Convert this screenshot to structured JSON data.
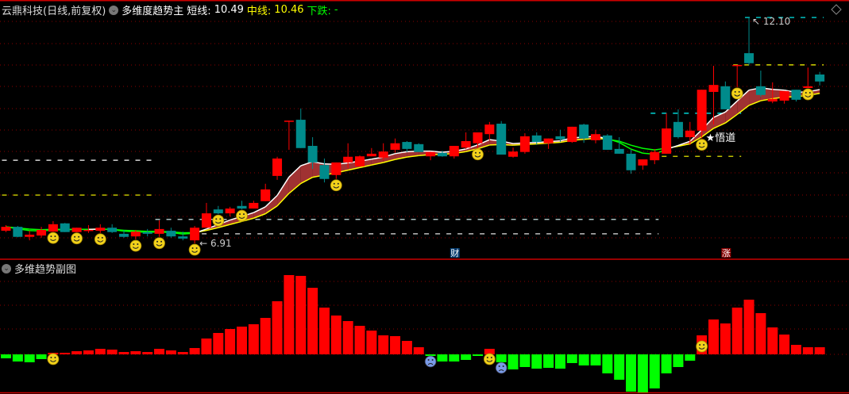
{
  "header": {
    "stock_title": "云鼎科技(日线,前复权)",
    "indicator_name": "多维度趋势主",
    "short_label": "短线:",
    "short_value": "10.49",
    "mid_label": "中线:",
    "mid_value": "10.46",
    "down_label": "下跌:",
    "down_value": "-"
  },
  "sub_panel": {
    "title": "多维趋势副图"
  },
  "colors": {
    "up": "#ff0000",
    "down": "#008b8b",
    "short_line": "#ffffff",
    "mid_line": "#ffff00",
    "fill": "#a03232",
    "grid": "#8b0000",
    "hist_up": "#ff0000",
    "hist_down": "#00ff00"
  },
  "annotations": {
    "low_label": "6.91",
    "high_label": "12.10",
    "signal_text": "★悟道",
    "cai_marker": "财",
    "zhang_marker": "涨"
  },
  "icons": [
    "dropdown-circle-icon",
    "diamond-icon",
    "smiley-icon",
    "frown-icon"
  ],
  "chart_data": [
    {
      "type": "candlestick",
      "title": "多维度趋势主",
      "high_marker": 12.1,
      "low_marker": 6.91,
      "ohlc": [
        [
          7.2,
          7.33,
          7.17,
          7.29
        ],
        [
          7.29,
          7.31,
          7.05,
          7.06
        ],
        [
          7.06,
          7.2,
          6.98,
          7.11
        ],
        [
          7.09,
          7.29,
          7.04,
          7.22
        ],
        [
          7.18,
          7.42,
          7.18,
          7.35
        ],
        [
          7.37,
          7.38,
          7.17,
          7.17
        ],
        [
          7.17,
          7.27,
          7.17,
          7.27
        ],
        [
          7.21,
          7.33,
          7.15,
          7.22
        ],
        [
          7.2,
          7.35,
          7.15,
          7.27
        ],
        [
          7.27,
          7.35,
          7.15,
          7.17
        ],
        [
          7.13,
          7.22,
          7.04,
          7.06
        ],
        [
          7.07,
          7.22,
          7.0,
          7.18
        ],
        [
          7.17,
          7.24,
          7.07,
          7.13
        ],
        [
          7.13,
          7.44,
          7.06,
          7.24
        ],
        [
          7.2,
          7.27,
          7.04,
          7.07
        ],
        [
          7.07,
          7.18,
          6.98,
          7.02
        ],
        [
          6.98,
          7.31,
          6.91,
          7.27
        ],
        [
          7.27,
          7.84,
          7.27,
          7.6
        ],
        [
          7.69,
          7.77,
          7.58,
          7.6
        ],
        [
          7.6,
          7.75,
          7.53,
          7.71
        ],
        [
          7.77,
          7.89,
          7.69,
          7.71
        ],
        [
          7.71,
          7.89,
          7.71,
          7.84
        ],
        [
          7.88,
          8.28,
          7.88,
          8.15
        ],
        [
          8.46,
          8.9,
          8.37,
          8.86
        ],
        [
          9.71,
          9.73,
          9.06,
          9.73
        ],
        [
          9.75,
          10.01,
          9.1,
          9.1
        ],
        [
          9.15,
          9.35,
          8.62,
          8.77
        ],
        [
          8.71,
          8.86,
          8.31,
          8.39
        ],
        [
          8.48,
          8.77,
          8.39,
          8.77
        ],
        [
          8.77,
          9.21,
          8.64,
          8.9
        ],
        [
          8.68,
          8.93,
          8.68,
          8.91
        ],
        [
          8.91,
          9.1,
          8.91,
          8.97
        ],
        [
          8.88,
          9.21,
          8.82,
          9.02
        ],
        [
          9.06,
          9.32,
          8.99,
          9.21
        ],
        [
          9.24,
          9.26,
          9.01,
          9.08
        ],
        [
          9.19,
          9.21,
          9.01,
          9.01
        ],
        [
          8.91,
          9.01,
          8.82,
          9.01
        ],
        [
          8.99,
          9.04,
          8.9,
          8.91
        ],
        [
          8.91,
          9.15,
          8.86,
          9.15
        ],
        [
          9.11,
          9.46,
          9.08,
          9.26
        ],
        [
          9.21,
          9.46,
          9.1,
          9.46
        ],
        [
          9.42,
          9.7,
          9.28,
          9.64
        ],
        [
          9.66,
          9.72,
          8.95,
          8.95
        ],
        [
          8.9,
          9.11,
          8.88,
          9.02
        ],
        [
          9.01,
          9.44,
          8.97,
          9.37
        ],
        [
          9.39,
          9.46,
          9.17,
          9.24
        ],
        [
          9.21,
          9.32,
          9.08,
          9.32
        ],
        [
          9.37,
          9.52,
          9.24,
          9.3
        ],
        [
          9.24,
          9.59,
          9.22,
          9.59
        ],
        [
          9.64,
          9.66,
          9.22,
          9.32
        ],
        [
          9.28,
          9.52,
          9.21,
          9.42
        ],
        [
          9.39,
          9.42,
          9.06,
          9.06
        ],
        [
          9.08,
          9.35,
          8.97,
          8.97
        ],
        [
          8.97,
          9.06,
          8.51,
          8.59
        ],
        [
          8.7,
          8.84,
          8.6,
          8.84
        ],
        [
          8.82,
          9.08,
          8.73,
          9.01
        ],
        [
          8.97,
          9.9,
          8.97,
          9.55
        ],
        [
          9.7,
          9.99,
          9.32,
          9.35
        ],
        [
          9.35,
          9.7,
          9.17,
          9.5
        ],
        [
          9.5,
          10.44,
          9.32,
          10.44
        ],
        [
          10.39,
          10.99,
          9.64,
          10.55
        ],
        [
          10.52,
          10.63,
          9.99,
          9.99
        ],
        [
          11.0,
          11.01,
          10.5,
          11.01
        ],
        [
          11.28,
          12.1,
          11.01,
          11.05
        ],
        [
          10.52,
          10.88,
          10.28,
          10.32
        ],
        [
          10.17,
          10.61,
          10.13,
          10.23
        ],
        [
          10.19,
          10.41,
          10.12,
          10.41
        ],
        [
          10.44,
          10.44,
          10.17,
          10.21
        ],
        [
          10.48,
          10.95,
          10.48,
          10.52
        ],
        [
          10.79,
          10.85,
          10.54,
          10.63
        ]
      ],
      "levels": [
        {
          "price": 8.82,
          "color": "#ffffff",
          "from": 0,
          "to": 12
        },
        {
          "price": 8.02,
          "color": "#ffff00",
          "from": 0,
          "to": 12
        },
        {
          "price": 7.46,
          "color": "#e0ffff",
          "from": 13,
          "to": 55
        },
        {
          "price": 7.13,
          "color": "#ffffff",
          "from": 16,
          "to": 55
        },
        {
          "price": 9.9,
          "color": "#00ffff",
          "from": 55,
          "to": 62
        },
        {
          "price": 8.91,
          "color": "#ffff00",
          "from": 55,
          "to": 62
        },
        {
          "price": 12.1,
          "color": "#00ffff",
          "from": 63,
          "to": 69
        },
        {
          "price": 11.01,
          "color": "#ffff00",
          "from": 62,
          "to": 69
        }
      ],
      "smiley_candles": [
        4,
        6,
        8,
        11,
        13,
        16,
        18,
        20,
        28,
        40,
        59,
        62,
        68
      ],
      "signal_candle": 59,
      "cai_candle": 38,
      "zhang_candle": 61
    },
    {
      "type": "bar",
      "title": "多维趋势副图",
      "values": [
        -5,
        -9,
        -10,
        -6,
        2,
        2,
        4,
        5,
        7,
        6,
        3,
        4,
        3,
        7,
        5,
        3,
        8,
        20,
        27,
        32,
        35,
        38,
        46,
        67,
        100,
        99,
        84,
        59,
        49,
        42,
        36,
        30,
        24,
        23,
        17,
        9,
        -2,
        -9,
        -9,
        -7,
        -2,
        7,
        -10,
        -19,
        -16,
        -18,
        -17,
        -18,
        -11,
        -14,
        -14,
        -24,
        -32,
        -47,
        -48,
        -43,
        -24,
        -16,
        -8,
        24,
        44,
        39,
        59,
        69,
        52,
        34,
        25,
        12,
        9,
        9
      ],
      "smiley_bars": [
        4,
        41,
        59
      ],
      "frown_bars": [
        36,
        42
      ]
    }
  ]
}
